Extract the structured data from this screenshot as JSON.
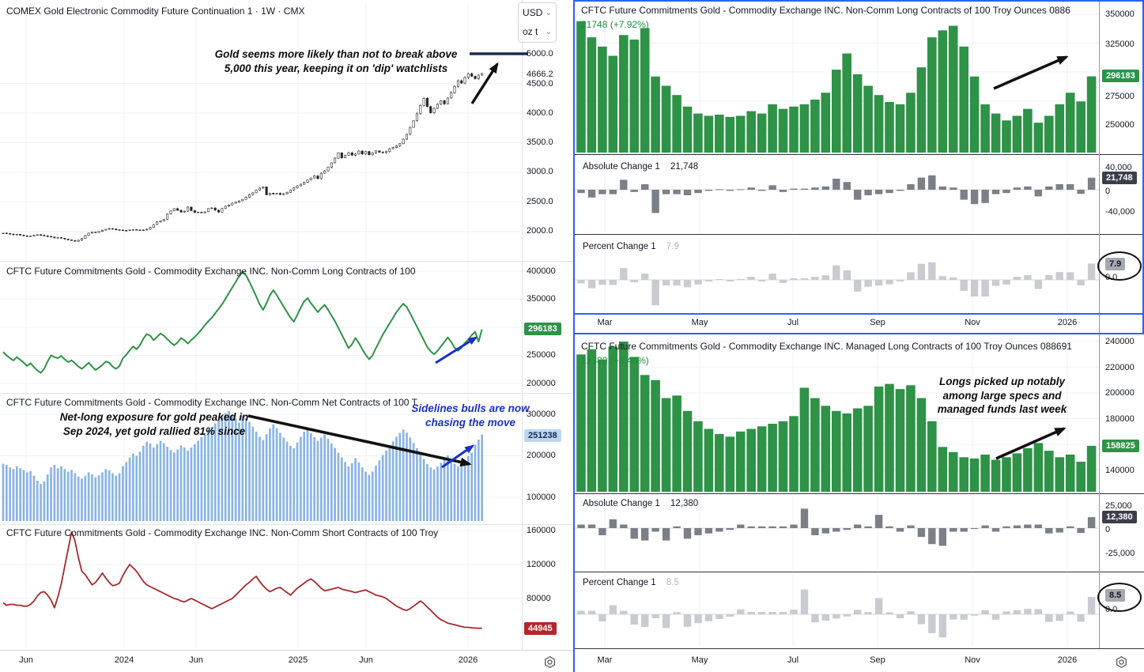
{
  "colors": {
    "green": "#2e9247",
    "blue_bar": "#8ab4e4",
    "red": "#a62b2b",
    "abs_bar": "#7b7f87",
    "pct_bar": "#c9cbd1",
    "badge_dark": "#3a3f4b",
    "badge_gray": "#a5a8ae",
    "badge_blue_bg": "#bcd6f2",
    "badge_blue_text": "#15294d",
    "badge_red": "#b3262a",
    "selection_blue": "#2962ff",
    "annotation_blue": "#1731c8",
    "navy_line": "#1c2b4a",
    "value_green": "#1e8e3e"
  },
  "left": {
    "pane1": {
      "title": "COMEX Gold Electronic Commodity Future Continuation 1 · 1W · CMX",
      "units": {
        "currency": "USD",
        "weight": "oz t"
      },
      "annotation": "Gold seems more likely than not to break above\n5,000 this year, keeping it on 'dip' watchlists",
      "y_ticks": [
        "5000.0",
        "4666.2",
        "4500.0",
        "4000.0",
        "3500.0",
        "3000.0",
        "2500.0",
        "2000.0"
      ]
    },
    "pane2": {
      "title": "CFTC Future Commitments Gold - Commodity Exchange INC. Non-Comm Long Contracts of 100",
      "y_ticks": [
        "400000",
        "350000",
        "250000",
        "200000"
      ],
      "last_badge": "296183"
    },
    "pane3": {
      "title": "CFTC Future Commitments Gold - Commodity Exchange INC. Non-Comm Net Contracts of 100 T",
      "annotation_black": "Net-long exposure for gold peaked in\nSep 2024, yet gold rallied 81% since",
      "annotation_blue": "Sidelines bulls are now\nchasing the move",
      "y_ticks": [
        "300000",
        "200000",
        "100000"
      ],
      "last_badge": "251238"
    },
    "pane4": {
      "title": "CFTC Future Commitments Gold - Commodity Exchange INC. Non-Comm Short Contracts of 100 Troy",
      "y_ticks": [
        "160000",
        "120000",
        "80000"
      ],
      "last_badge": "44945"
    },
    "time_ticks": [
      "Jun",
      "2024",
      "Jun",
      "2025",
      "Jun",
      "2026"
    ]
  },
  "right": {
    "groupA": {
      "title": "CFTC Future Commitments Gold - Commodity Exchange INC. Non-Comm Long Contracts of 100 Troy Ounces 0886",
      "value_line": "21748 (+7.92%)",
      "y_ticks": [
        "350000",
        "325000",
        "275000",
        "250000"
      ],
      "last_badge": "296183",
      "abs": {
        "label": "Absolute Change 1",
        "value": "21,748",
        "badge": "21,748",
        "y_ticks": [
          "40,000",
          "0",
          "-40,000"
        ]
      },
      "pct": {
        "label": "Percent Change 1",
        "value": "7.9",
        "badge": "7.9",
        "zero": "0.0"
      },
      "time_ticks": [
        "Mar",
        "May",
        "Jul",
        "Sep",
        "Nov",
        "2026"
      ]
    },
    "groupB": {
      "title": "CFTC Future Commitments Gold - Commodity Exchange INC. Managed Long Contracts of 100 Troy Ounces 088691",
      "value_line": "12380 (+8.45%)",
      "annotation": "Longs picked up notably\namong large specs and\nmanaged funds last week",
      "y_ticks": [
        "240000",
        "220000",
        "200000",
        "180000",
        "140000"
      ],
      "last_badge": "158825",
      "abs": {
        "label": "Absolute Change 1",
        "value": "12,380",
        "badge": "12,380",
        "y_ticks": [
          "25,000",
          "0",
          "-25,000"
        ]
      },
      "pct": {
        "label": "Percent Change 1",
        "value": "8.5",
        "badge": "8.5",
        "zero": "0.0"
      },
      "time_ticks": [
        "Mar",
        "May",
        "Jul",
        "Sep",
        "Nov",
        "2026"
      ]
    }
  },
  "chart_data": [
    {
      "id": "gold-price",
      "type": "candlestick",
      "panel": "left-1",
      "title": "COMEX Gold Electronic Commodity Future Continuation 1 · 1W · CMX",
      "unit": "USD / oz t",
      "x_ticks": [
        "Jun",
        "2024",
        "Jun",
        "2025",
        "Jun",
        "2026"
      ],
      "y_ticks": [
        5000,
        4500,
        4000,
        3500,
        3000,
        2500,
        2000
      ],
      "last": 4666.2,
      "drawing_level": 5000,
      "closes": [
        1975,
        1968,
        1958,
        1948,
        1955,
        1942,
        1930,
        1920,
        1928,
        1938,
        1948,
        1940,
        1930,
        1918,
        1908,
        1895,
        1900,
        1888,
        1875,
        1862,
        1850,
        1838,
        1855,
        1885,
        1935,
        1975,
        1992,
        1985,
        2005,
        2025,
        2040,
        2052,
        2045,
        2032,
        2028,
        2022,
        2018,
        2028,
        2035,
        2030,
        2022,
        2028,
        2042,
        2072,
        2120,
        2165,
        2180,
        2210,
        2300,
        2350,
        2390,
        2360,
        2330,
        2345,
        2415,
        2355,
        2325,
        2330,
        2318,
        2335,
        2390,
        2398,
        2362,
        2330,
        2390,
        2430,
        2450,
        2480,
        2500,
        2520,
        2545,
        2580,
        2625,
        2655,
        2700,
        2735,
        2755,
        2620,
        2650,
        2635,
        2645,
        2625,
        2640,
        2662,
        2700,
        2740,
        2772,
        2800,
        2835,
        2870,
        2905,
        2940,
        2895,
        2985,
        3025,
        3085,
        3160,
        3240,
        3330,
        3245,
        3290,
        3330,
        3290,
        3310,
        3360,
        3310,
        3352,
        3295,
        3330,
        3362,
        3340,
        3332,
        3350,
        3398,
        3418,
        3448,
        3482,
        3560,
        3642,
        3760,
        3870,
        3990,
        4130,
        4250,
        4110,
        4005,
        4080,
        4150,
        4210,
        4155,
        4255,
        4345,
        4450,
        4545,
        4505,
        4600,
        4665,
        4620,
        4580,
        4640,
        4666.2
      ]
    },
    {
      "id": "noncomm-long",
      "type": "line",
      "panel": "left-2",
      "title": "CFTC Non-Comm Long Contracts",
      "color": "#2e9247",
      "y_ticks": [
        400000,
        350000,
        300000,
        250000,
        200000
      ],
      "last": 296183,
      "values": [
        256000,
        250000,
        245000,
        241000,
        247000,
        242000,
        237000,
        231000,
        236000,
        229000,
        223000,
        219000,
        226000,
        239000,
        250000,
        247000,
        245000,
        249000,
        243000,
        238000,
        241000,
        236000,
        230000,
        226000,
        231000,
        237000,
        230000,
        224000,
        228000,
        233000,
        239000,
        237000,
        230000,
        226000,
        231000,
        245000,
        251000,
        259000,
        266000,
        261000,
        268000,
        280000,
        288000,
        285000,
        277000,
        283000,
        289000,
        285000,
        279000,
        273000,
        268000,
        273000,
        281000,
        277000,
        271000,
        277000,
        283000,
        289000,
        296000,
        304000,
        311000,
        317000,
        325000,
        333000,
        341000,
        351000,
        361000,
        371000,
        381000,
        391000,
        399000,
        393000,
        381000,
        368000,
        355000,
        341000,
        331000,
        343000,
        357000,
        366000,
        357000,
        347000,
        337000,
        327000,
        317000,
        310000,
        322000,
        335000,
        346000,
        352000,
        343000,
        335000,
        327000,
        334000,
        340000,
        331000,
        321000,
        311000,
        299000,
        287000,
        275000,
        263000,
        270000,
        281000,
        272000,
        261000,
        251000,
        243000,
        250000,
        263000,
        275000,
        287000,
        297000,
        307000,
        317000,
        327000,
        335000,
        342000,
        336000,
        325000,
        313000,
        301000,
        289000,
        277000,
        265000,
        257000,
        252000,
        258000,
        266000,
        274000,
        282000,
        274000,
        264000,
        258000,
        264000,
        272000,
        278000,
        286000,
        292000,
        274435,
        296183
      ]
    },
    {
      "id": "noncomm-net",
      "type": "bar",
      "panel": "left-3",
      "title": "CFTC Non-Comm Net Contracts",
      "color": "#8ab4e4",
      "y_ticks": [
        300000,
        200000,
        100000
      ],
      "last": 251238,
      "values": [
        181000,
        178000,
        172000,
        168000,
        175000,
        170000,
        166000,
        160000,
        163000,
        152000,
        140000,
        132000,
        138000,
        155000,
        172000,
        178000,
        170000,
        175000,
        168000,
        162000,
        166000,
        158000,
        150000,
        145000,
        152000,
        160000,
        155000,
        148000,
        153000,
        160000,
        168000,
        165000,
        158000,
        152000,
        158000,
        175000,
        185000,
        196000,
        205000,
        200000,
        210000,
        224000,
        234000,
        230000,
        220000,
        228000,
        236000,
        230000,
        222000,
        214000,
        208000,
        215000,
        225000,
        220000,
        212000,
        220000,
        228000,
        236000,
        245000,
        254000,
        262000,
        270000,
        278000,
        287000,
        295000,
        303000,
        308000,
        300000,
        290000,
        280000,
        296000,
        290000,
        282000,
        270000,
        258000,
        246000,
        238000,
        252000,
        266000,
        276000,
        266000,
        255000,
        244000,
        234000,
        224000,
        218000,
        232000,
        246000,
        258000,
        264000,
        254000,
        245000,
        236000,
        244000,
        251000,
        241000,
        230000,
        219000,
        207000,
        196000,
        185000,
        174000,
        182000,
        194000,
        184000,
        172000,
        162000,
        154000,
        162000,
        176000,
        189000,
        202000,
        213000,
        224000,
        235000,
        246000,
        255000,
        263000,
        256000,
        244000,
        231000,
        218000,
        205000,
        192000,
        180000,
        172000,
        167000,
        174000,
        183000,
        192000,
        201000,
        192000,
        181000,
        174000,
        181000,
        190000,
        199000,
        208000,
        227000,
        239000,
        251238
      ]
    },
    {
      "id": "noncomm-short",
      "type": "line",
      "panel": "left-4",
      "title": "CFTC Non-Comm Short Contracts",
      "color": "#a62b2b",
      "y_ticks": [
        160000,
        120000,
        80000
      ],
      "last": 44945,
      "values": [
        75000,
        72000,
        73000,
        73000,
        72000,
        72000,
        71000,
        71000,
        73000,
        77000,
        83000,
        87000,
        88000,
        84000,
        78000,
        69000,
        82000,
        97000,
        118000,
        138000,
        158000,
        148000,
        128000,
        112000,
        108000,
        102000,
        96000,
        99000,
        104000,
        110000,
        104000,
        99000,
        95000,
        96000,
        98000,
        107000,
        114000,
        120000,
        116000,
        112000,
        106000,
        100000,
        96000,
        94000,
        92000,
        90000,
        88000,
        86000,
        84000,
        82000,
        80000,
        79000,
        77000,
        76000,
        78000,
        80000,
        78000,
        76000,
        74000,
        72000,
        70000,
        68000,
        70000,
        72000,
        74000,
        76000,
        78000,
        80000,
        84000,
        88000,
        92000,
        96000,
        99000,
        103000,
        106000,
        100000,
        95000,
        91000,
        88000,
        90000,
        92000,
        93000,
        90000,
        87000,
        84000,
        88000,
        92000,
        95000,
        98000,
        101000,
        103000,
        100000,
        96000,
        92000,
        89000,
        90000,
        91000,
        92000,
        93000,
        91000,
        90000,
        89000,
        88000,
        87000,
        88000,
        89000,
        90000,
        88000,
        86000,
        84000,
        83000,
        82000,
        80000,
        77000,
        74000,
        71000,
        69000,
        67000,
        66000,
        68000,
        71000,
        74000,
        77000,
        74000,
        70000,
        66000,
        62000,
        58000,
        55000,
        53000,
        51000,
        50000,
        49000,
        48000,
        47000,
        46000,
        46000,
        45500,
        45200,
        45000,
        44945
      ]
    },
    {
      "id": "noncomm-long-weekly",
      "type": "bar",
      "panel": "right-A",
      "title": "CFTC Non-Comm Long Contracts of 100 Troy Ounces 0886",
      "color": "#2e9247",
      "x_ticks": [
        "Mar",
        "May",
        "Jul",
        "Sep",
        "Nov",
        "2026"
      ],
      "y_ticks": [
        350000,
        325000,
        300000,
        275000,
        250000
      ],
      "last": 296183,
      "abs_change": 21748,
      "pct_change": 7.92,
      "abs_axis": [
        40000,
        0,
        -40000
      ],
      "values": [
        344000,
        330000,
        322000,
        314000,
        332000,
        328000,
        338000,
        296000,
        288000,
        280000,
        270000,
        264000,
        262000,
        263000,
        261000,
        262000,
        266000,
        264000,
        272000,
        268000,
        270000,
        272000,
        276000,
        282000,
        302000,
        316000,
        298000,
        288000,
        280000,
        274000,
        272000,
        282000,
        304000,
        330000,
        336000,
        340000,
        322000,
        296000,
        272000,
        264000,
        258000,
        262000,
        268000,
        256000,
        262000,
        272000,
        282000,
        274435,
        296183
      ]
    },
    {
      "id": "managed-long-weekly",
      "type": "bar",
      "panel": "right-B",
      "title": "CFTC Managed Long Contracts of 100 Troy Ounces 088691",
      "color": "#2e9247",
      "x_ticks": [
        "Mar",
        "May",
        "Jul",
        "Sep",
        "Nov",
        "2026"
      ],
      "y_ticks": [
        240000,
        220000,
        200000,
        180000,
        160000,
        140000
      ],
      "last": 158825,
      "abs_change": 12380,
      "pct_change": 8.45,
      "abs_axis": [
        25000,
        0,
        -25000
      ],
      "values": [
        230000,
        234000,
        226000,
        236000,
        240000,
        228000,
        214000,
        210000,
        196000,
        198000,
        186000,
        178000,
        172000,
        168000,
        166000,
        170000,
        172000,
        174000,
        176000,
        178000,
        182000,
        204000,
        196000,
        190000,
        186000,
        184000,
        188000,
        190000,
        205000,
        207000,
        203000,
        206000,
        196000,
        178000,
        158000,
        154000,
        150000,
        149000,
        152000,
        148000,
        150000,
        153000,
        157000,
        161000,
        155000,
        150000,
        152000,
        146445,
        158825
      ]
    }
  ]
}
